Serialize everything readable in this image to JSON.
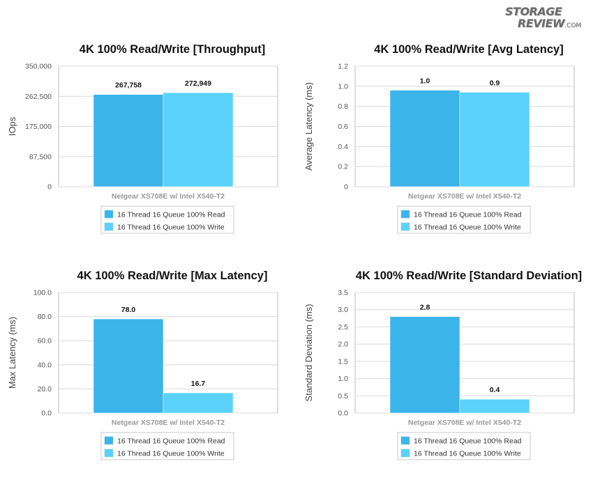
{
  "logo": {
    "line1": "STORAGE",
    "line2": "REVIEW",
    "suffix": ".COM"
  },
  "colors": {
    "read": "#3bb4ea",
    "write": "#5bd2fb",
    "grid": "#d9d9d9",
    "axis": "#bdbdbd"
  },
  "chart_data": [
    {
      "type": "bar",
      "title": "4K 100% Read/Write [Throughput]",
      "ylabel": "IOps",
      "xlabel": "",
      "categories": [
        "Netgear XS708E w/ Intel X540-T2"
      ],
      "ylim": [
        0,
        350000
      ],
      "yticks": [
        0,
        87500,
        175000,
        262500,
        350000
      ],
      "ytick_labels": [
        "0",
        "87,500",
        "175,000",
        "262,500",
        "350,000"
      ],
      "series": [
        {
          "name": "16 Thread 16 Queue 100% Read",
          "values": [
            267758
          ],
          "labels": [
            "267,758"
          ]
        },
        {
          "name": "16 Thread 16 Queue 100% Write",
          "values": [
            272949
          ],
          "labels": [
            "272,949"
          ]
        }
      ],
      "grid": true,
      "legend": "bottom"
    },
    {
      "type": "bar",
      "title": "4K 100% Read/Write [Avg Latency]",
      "ylabel": "Average Latency (ms)",
      "xlabel": "",
      "categories": [
        "Netgear XS708E w/ Intel X540-T2"
      ],
      "ylim": [
        0,
        1.2
      ],
      "yticks": [
        0,
        0.2,
        0.4,
        0.6,
        0.8,
        1.0,
        1.2
      ],
      "ytick_labels": [
        "0",
        "0.2",
        "0.4",
        "0.6",
        "0.8",
        "1.0",
        "1.2"
      ],
      "series": [
        {
          "name": "16 Thread 16 Queue 100% Read",
          "values": [
            0.96
          ],
          "labels": [
            "1.0"
          ]
        },
        {
          "name": "16 Thread 16 Queue 100% Write",
          "values": [
            0.94
          ],
          "labels": [
            "0.9"
          ]
        }
      ],
      "grid": true,
      "legend": "bottom"
    },
    {
      "type": "bar",
      "title": "4K 100% Read/Write [Max Latency]",
      "ylabel": "Max Latency (ms)",
      "xlabel": "",
      "categories": [
        "Netgear XS708E w/ Intel X540-T2"
      ],
      "ylim": [
        0,
        100
      ],
      "yticks": [
        0,
        20,
        40,
        60,
        80,
        100
      ],
      "ytick_labels": [
        "0.0",
        "20.0",
        "40.0",
        "60.0",
        "80.0",
        "100.0"
      ],
      "series": [
        {
          "name": "16 Thread 16 Queue 100% Read",
          "values": [
            78.0
          ],
          "labels": [
            "78.0"
          ]
        },
        {
          "name": "16 Thread 16 Queue 100% Write",
          "values": [
            16.7
          ],
          "labels": [
            "16.7"
          ]
        }
      ],
      "grid": true,
      "legend": "bottom"
    },
    {
      "type": "bar",
      "title": "4K 100% Read/Write [Standard Deviation]",
      "ylabel": "Standard Deviation (ms)",
      "xlabel": "",
      "categories": [
        "Netgear XS708E w/ Intel X540-T2"
      ],
      "ylim": [
        0,
        3.5
      ],
      "yticks": [
        0,
        0.5,
        1.0,
        1.5,
        2.0,
        2.5,
        3.0,
        3.5
      ],
      "ytick_labels": [
        "0.0",
        "0.5",
        "1.0",
        "1.5",
        "2.0",
        "2.5",
        "3.0",
        "3.5"
      ],
      "series": [
        {
          "name": "16 Thread 16 Queue 100% Read",
          "values": [
            2.8
          ],
          "labels": [
            "2.8"
          ]
        },
        {
          "name": "16 Thread 16 Queue 100% Write",
          "values": [
            0.4
          ],
          "labels": [
            "0.4"
          ]
        }
      ],
      "grid": true,
      "legend": "bottom"
    }
  ]
}
